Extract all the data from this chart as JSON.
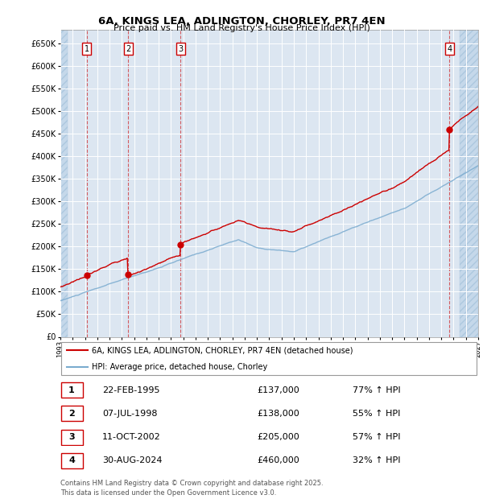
{
  "title_line1": "6A, KINGS LEA, ADLINGTON, CHORLEY, PR7 4EN",
  "title_line2": "Price paid vs. HM Land Registry's House Price Index (HPI)",
  "ylim": [
    0,
    680000
  ],
  "yticks": [
    0,
    50000,
    100000,
    150000,
    200000,
    250000,
    300000,
    350000,
    400000,
    450000,
    500000,
    550000,
    600000,
    650000
  ],
  "xlim_start": 1993.0,
  "xlim_end": 2027.0,
  "bg_color": "#dce6f1",
  "hatch_color": "#c5d8ea",
  "grid_color": "#ffffff",
  "red_color": "#cc0000",
  "blue_color": "#7aabcf",
  "sale_dates_num": [
    1995.14,
    1998.52,
    2002.78,
    2024.66
  ],
  "sale_prices": [
    137000,
    138000,
    205000,
    460000
  ],
  "sale_labels": [
    "1",
    "2",
    "3",
    "4"
  ],
  "legend_entries": [
    "6A, KINGS LEA, ADLINGTON, CHORLEY, PR7 4EN (detached house)",
    "HPI: Average price, detached house, Chorley"
  ],
  "table_rows": [
    [
      "1",
      "22-FEB-1995",
      "£137,000",
      "77% ↑ HPI"
    ],
    [
      "2",
      "07-JUL-1998",
      "£138,000",
      "55% ↑ HPI"
    ],
    [
      "3",
      "11-OCT-2002",
      "£205,000",
      "57% ↑ HPI"
    ],
    [
      "4",
      "30-AUG-2024",
      "£460,000",
      "32% ↑ HPI"
    ]
  ],
  "footnote": "Contains HM Land Registry data © Crown copyright and database right 2025.\nThis data is licensed under the Open Government Licence v3.0."
}
